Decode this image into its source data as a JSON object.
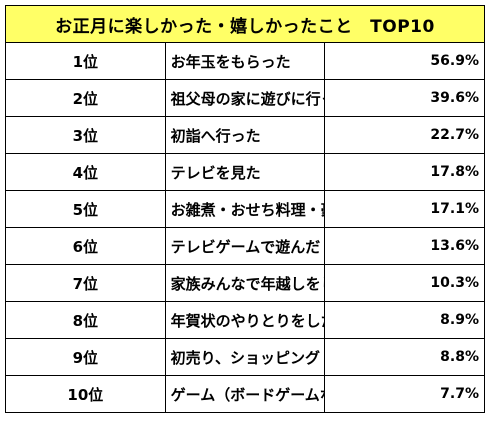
{
  "title": "お正月に楽しかった・嬉しかったこと　TOP10",
  "rows": [
    {
      "rank": "1位",
      "item": "お年玉をもらった",
      "value": "56.9%"
    },
    {
      "rank": "2位",
      "item": "祖父母の家に遊びに行った",
      "value": "39.6%"
    },
    {
      "rank": "3位",
      "item": "初詣へ行った",
      "value": "22.7%"
    },
    {
      "rank": "4位",
      "item": "テレビを見た",
      "value": "17.8%"
    },
    {
      "rank": "5位",
      "item": "お雑煮・おせち料理・豪華な料理を食べた",
      "value": "17.1%"
    },
    {
      "rank": "6位",
      "item": "テレビゲームで遊んだ",
      "value": "13.6%"
    },
    {
      "rank": "7位",
      "item": "家族みんなで年越しをした",
      "value": "10.3%"
    },
    {
      "rank": "8位",
      "item": "年賀状のやりとりをした",
      "value": "8.9%"
    },
    {
      "rank": "9位",
      "item": "初売り、ショッピング（福袋の購入除く）へ行った",
      "value": "8.8%"
    },
    {
      "rank": "10位",
      "item": "ゲーム（ボードゲームなど）で遊んだ",
      "value": "7.7%"
    }
  ],
  "colors": {
    "header_background": "#ffff66",
    "border": "#000000"
  }
}
